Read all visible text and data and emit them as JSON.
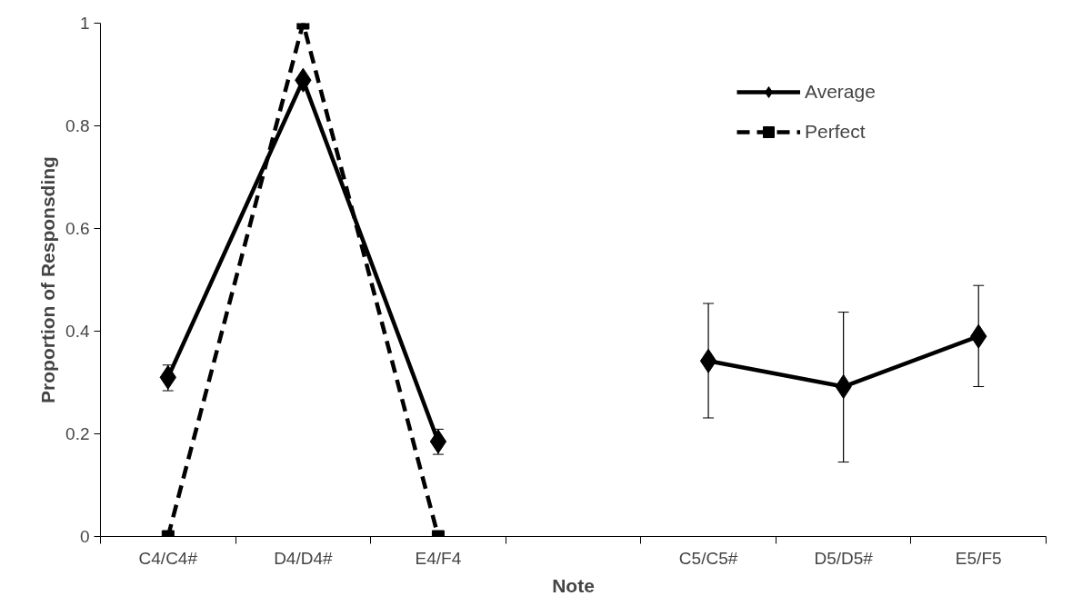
{
  "chart_data": {
    "type": "line",
    "xlabel": "Note",
    "ylabel": "Proportion of Responsding",
    "categories": [
      "C4/C4#",
      "D4/D4#",
      "E4/F4",
      null,
      "C5/C5#",
      "D5/D5#",
      "E5/F5"
    ],
    "ylim": [
      0,
      1
    ],
    "yticks": [
      0,
      0.2,
      0.4,
      0.6,
      0.8,
      1
    ],
    "grid": false,
    "legend": "top right",
    "series": [
      {
        "name": "Average",
        "color": "#000000",
        "marker": "diamond",
        "line_style": "solid",
        "values": [
          0.31,
          0.889,
          0.185,
          null,
          0.342,
          0.292,
          0.39
        ],
        "errors": [
          [
            0.284,
            0.334
          ],
          null,
          [
            0.16,
            0.209
          ],
          null,
          [
            0.231,
            0.454
          ],
          [
            0.145,
            0.437
          ],
          [
            0.292,
            0.489
          ]
        ]
      },
      {
        "name": "Perfect",
        "color": "#000000",
        "marker": "square",
        "line_style": "dashed",
        "values": [
          0,
          1,
          0,
          null,
          null,
          null,
          null
        ]
      }
    ]
  }
}
